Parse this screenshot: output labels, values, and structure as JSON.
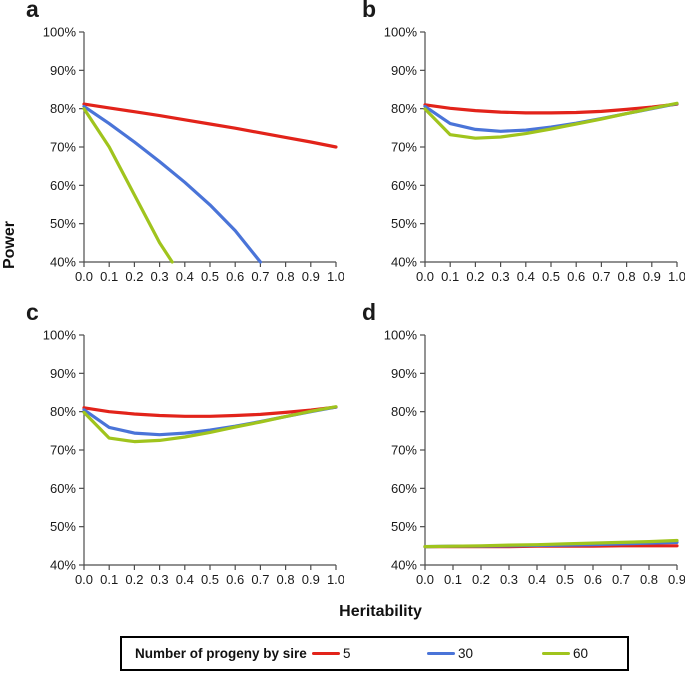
{
  "figure": {
    "ylabel": "Power",
    "xlabel": "Heritability"
  },
  "legend": {
    "title": "Number of progeny by sire",
    "items": [
      {
        "label": "5",
        "color": "#e2231a"
      },
      {
        "label": "30",
        "color": "#4a74d8"
      },
      {
        "label": "60",
        "color": "#a0c41d"
      }
    ]
  },
  "chart_data": [
    {
      "panel": "a",
      "type": "line",
      "xlim": [
        0,
        1.0
      ],
      "ylim": [
        40,
        100
      ],
      "x_ticks": [
        "0.0",
        "0.1",
        "0.2",
        "0.3",
        "0.4",
        "0.5",
        "0.6",
        "0.7",
        "0.8",
        "0.9",
        "1.0"
      ],
      "y_ticks": [
        "40%",
        "50%",
        "60%",
        "70%",
        "80%",
        "90%",
        "100%"
      ],
      "series": [
        {
          "name": "5",
          "color": "#e2231a",
          "x": [
            0,
            0.1,
            0.2,
            0.3,
            0.4,
            0.5,
            0.6,
            0.7,
            0.8,
            0.9,
            1.0
          ],
          "y": [
            81.2,
            80.2,
            79.2,
            78.2,
            77.1,
            76.0,
            74.9,
            73.7,
            72.5,
            71.3,
            70.0
          ]
        },
        {
          "name": "30",
          "color": "#4a74d8",
          "x": [
            0,
            0.1,
            0.2,
            0.3,
            0.4,
            0.5,
            0.6,
            0.7
          ],
          "y": [
            80.6,
            76.1,
            71.3,
            66.2,
            60.8,
            54.9,
            48.2,
            40.0
          ]
        },
        {
          "name": "60",
          "color": "#a0c41d",
          "x": [
            0,
            0.1,
            0.2,
            0.3,
            0.35
          ],
          "y": [
            80.0,
            70.0,
            57.5,
            45.0,
            40.0
          ]
        }
      ]
    },
    {
      "panel": "b",
      "type": "line",
      "xlim": [
        0,
        1.0
      ],
      "ylim": [
        40,
        100
      ],
      "x_ticks": [
        "0.0",
        "0.1",
        "0.2",
        "0.3",
        "0.4",
        "0.5",
        "0.6",
        "0.7",
        "0.8",
        "0.9",
        "1.0"
      ],
      "y_ticks": [
        "40%",
        "50%",
        "60%",
        "70%",
        "80%",
        "90%",
        "100%"
      ],
      "series": [
        {
          "name": "5",
          "color": "#e2231a",
          "x": [
            0,
            0.1,
            0.2,
            0.3,
            0.4,
            0.5,
            0.6,
            0.7,
            0.8,
            0.9,
            1.0
          ],
          "y": [
            81.0,
            80.1,
            79.5,
            79.1,
            78.9,
            78.9,
            79.0,
            79.3,
            79.8,
            80.4,
            81.2
          ]
        },
        {
          "name": "30",
          "color": "#4a74d8",
          "x": [
            0,
            0.1,
            0.2,
            0.3,
            0.4,
            0.5,
            0.6,
            0.7,
            0.8,
            0.9,
            1.0
          ],
          "y": [
            80.6,
            76.1,
            74.6,
            74.1,
            74.4,
            75.2,
            76.2,
            77.4,
            78.7,
            80.0,
            81.3
          ]
        },
        {
          "name": "60",
          "color": "#a0c41d",
          "x": [
            0,
            0.1,
            0.2,
            0.3,
            0.4,
            0.5,
            0.6,
            0.7,
            0.8,
            0.9,
            1.0
          ],
          "y": [
            79.9,
            73.2,
            72.3,
            72.6,
            73.5,
            74.7,
            76.0,
            77.3,
            78.7,
            80.1,
            81.4
          ]
        }
      ]
    },
    {
      "panel": "c",
      "type": "line",
      "xlim": [
        0,
        1.0
      ],
      "ylim": [
        40,
        100
      ],
      "x_ticks": [
        "0.0",
        "0.1",
        "0.2",
        "0.3",
        "0.4",
        "0.5",
        "0.6",
        "0.7",
        "0.8",
        "0.9",
        "1.0"
      ],
      "y_ticks": [
        "40%",
        "50%",
        "60%",
        "70%",
        "80%",
        "90%",
        "100%"
      ],
      "series": [
        {
          "name": "5",
          "color": "#e2231a",
          "x": [
            0,
            0.1,
            0.2,
            0.3,
            0.4,
            0.5,
            0.6,
            0.7,
            0.8,
            0.9,
            1.0
          ],
          "y": [
            81.0,
            80.0,
            79.4,
            79.0,
            78.8,
            78.8,
            79.0,
            79.3,
            79.8,
            80.4,
            81.2
          ]
        },
        {
          "name": "30",
          "color": "#4a74d8",
          "x": [
            0,
            0.1,
            0.2,
            0.3,
            0.4,
            0.5,
            0.6,
            0.7,
            0.8,
            0.9,
            1.0
          ],
          "y": [
            80.5,
            75.9,
            74.4,
            74.0,
            74.4,
            75.2,
            76.2,
            77.4,
            78.7,
            80.0,
            81.2
          ]
        },
        {
          "name": "60",
          "color": "#a0c41d",
          "x": [
            0,
            0.1,
            0.2,
            0.3,
            0.4,
            0.5,
            0.6,
            0.7,
            0.8,
            0.9,
            1.0
          ],
          "y": [
            79.8,
            73.1,
            72.2,
            72.5,
            73.4,
            74.6,
            76.0,
            77.3,
            78.7,
            80.1,
            81.3
          ]
        }
      ]
    },
    {
      "panel": "d",
      "type": "line",
      "xlim": [
        0,
        0.9
      ],
      "ylim": [
        40,
        100
      ],
      "x_ticks": [
        "0.0",
        "0.1",
        "0.2",
        "0.3",
        "0.4",
        "0.5",
        "0.6",
        "0.7",
        "0.8",
        "0.9"
      ],
      "y_ticks": [
        "40%",
        "50%",
        "60%",
        "70%",
        "80%",
        "90%",
        "100%"
      ],
      "series": [
        {
          "name": "5",
          "color": "#e2231a",
          "x": [
            0,
            0.1,
            0.2,
            0.3,
            0.4,
            0.5,
            0.6,
            0.7,
            0.8,
            0.9
          ],
          "y": [
            44.8,
            44.8,
            44.8,
            44.8,
            44.9,
            44.9,
            44.9,
            45.0,
            45.0,
            45.0
          ]
        },
        {
          "name": "30",
          "color": "#4a74d8",
          "x": [
            0,
            0.1,
            0.2,
            0.3,
            0.4,
            0.5,
            0.6,
            0.7,
            0.8,
            0.9
          ],
          "y": [
            44.8,
            44.9,
            44.9,
            45.0,
            45.1,
            45.2,
            45.3,
            45.5,
            45.7,
            45.9
          ]
        },
        {
          "name": "60",
          "color": "#a0c41d",
          "x": [
            0,
            0.1,
            0.2,
            0.3,
            0.4,
            0.5,
            0.6,
            0.7,
            0.8,
            0.9
          ],
          "y": [
            44.8,
            44.9,
            45.0,
            45.2,
            45.3,
            45.5,
            45.7,
            45.9,
            46.1,
            46.4
          ]
        }
      ]
    }
  ]
}
